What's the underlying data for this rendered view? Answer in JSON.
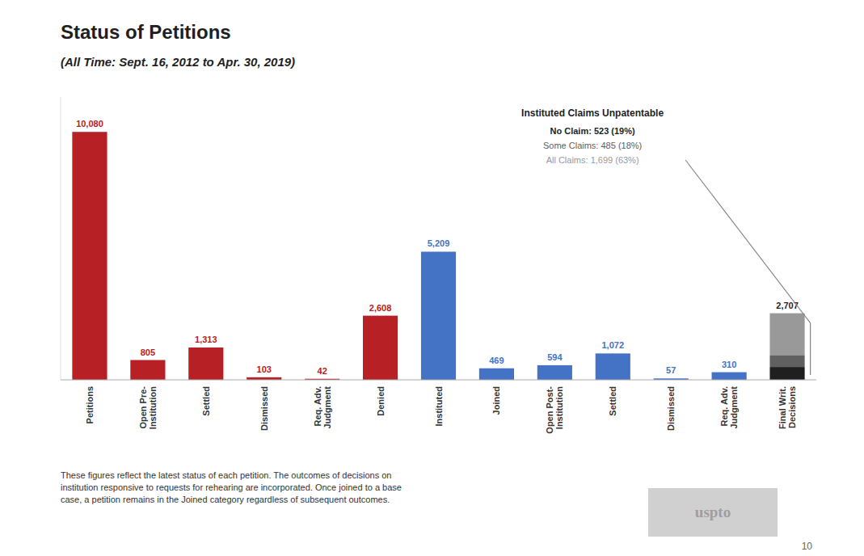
{
  "chart_data": {
    "type": "bar",
    "title": "Status of Petitions",
    "subtitle": "(All Time: Sept. 16, 2012 to Apr. 30, 2019)",
    "categories": [
      "Petitions",
      "Open Pre-\nInstitution",
      "Settled",
      "Dismissed",
      "Req. Adv.\nJudgment",
      "Denied",
      "Instituted",
      "Joined",
      "Open Post-\nInstitution",
      "Settled",
      "Dismissed",
      "Req. Adv.\nJudgment",
      "Final Writ.\nDecisions"
    ],
    "values": [
      10080,
      805,
      1313,
      103,
      42,
      2608,
      5209,
      469,
      594,
      1072,
      57,
      310,
      2707
    ],
    "value_labels": [
      "10,080",
      "805",
      "1,313",
      "103",
      "42",
      "2,608",
      "5,209",
      "469",
      "594",
      "1,072",
      "57",
      "310",
      "2,707"
    ],
    "colors": [
      "#b72025",
      "#b72025",
      "#b72025",
      "#b72025",
      "#b72025",
      "#b72025",
      "#4472c4",
      "#4472c4",
      "#4472c4",
      "#4472c4",
      "#4472c4",
      "#4472c4",
      null
    ],
    "stacked": true,
    "segments": {
      "values": [
        523,
        485,
        1699
      ],
      "colors": [
        "#1f1f1f",
        "#606060",
        "#999999"
      ]
    },
    "data_labels": true,
    "ylim": [
      0,
      11500
    ],
    "tick_labels": "x",
    "grid": false,
    "annotation": {
      "title": "Instituted Claims Unpatentable",
      "lines": [
        "No Claim: 523 (19%)",
        "Some Claims: 485 (18%)",
        "All Claims: 1,699 (63%)"
      ]
    },
    "footer": "These figures reflect the latest status of each petition. The outcomes of decisions on\ninstitution responsive to requests for rehearing are incorporated. Once joined to a base\ncase, a petition remains in the Joined category regardless of subsequent outcomes.",
    "page_number": "10",
    "watermark": "uspto"
  }
}
